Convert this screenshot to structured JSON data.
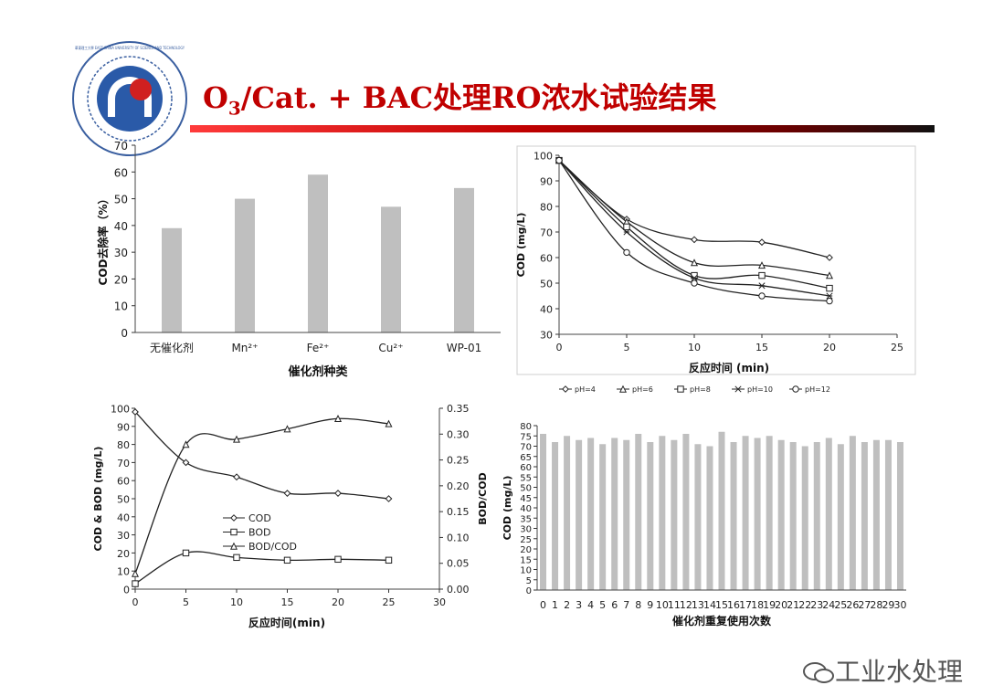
{
  "slide": {
    "title_main": "O",
    "title_sub": "3",
    "title_rest": "/Cat. + BAC处理RO浓水试验结果",
    "logo_icon": "university-seal-icon",
    "logo_text": "華東理工大學 EAST CHINA UNIVERSITY OF SCIENCE AND TECHNOLOGY",
    "watermark_icon": "wechat-icon",
    "watermark": "工业水处理",
    "accent": "#c00000"
  },
  "chart_data": [
    {
      "type": "bar",
      "categories": [
        "无催化剂",
        "Mn²⁺",
        "Fe²⁺",
        "Cu²⁺",
        "WP-01"
      ],
      "values": [
        39,
        50,
        59,
        47,
        54
      ],
      "xlabel": "催化剂种类",
      "ylabel": "COD去除率（%）",
      "ylim": [
        0,
        70
      ],
      "yticks": [
        "0",
        "10",
        "20",
        "30",
        "40",
        "50",
        "60",
        "70"
      ],
      "bar_color": "#bfbfbf"
    },
    {
      "type": "line",
      "x": [
        0,
        5,
        10,
        15,
        20
      ],
      "series": [
        {
          "name": "pH=4",
          "marker": "diamond",
          "values": [
            98,
            75,
            67,
            66,
            60
          ]
        },
        {
          "name": "pH=6",
          "marker": "triangle",
          "values": [
            98,
            74,
            58,
            57,
            53
          ]
        },
        {
          "name": "pH=8",
          "marker": "square",
          "values": [
            98,
            72,
            53,
            53,
            48
          ]
        },
        {
          "name": "pH=10",
          "marker": "star",
          "values": [
            98,
            70,
            52,
            49,
            45
          ]
        },
        {
          "name": "pH=12",
          "marker": "circle",
          "values": [
            98,
            62,
            50,
            45,
            43
          ]
        }
      ],
      "xlabel": "反应时间 (min)",
      "ylabel": "COD (mg/L)",
      "xlim": [
        0,
        25
      ],
      "ylim": [
        30,
        100
      ],
      "xticks": [
        "0",
        "5",
        "10",
        "15",
        "20",
        "25"
      ],
      "yticks": [
        "30",
        "40",
        "50",
        "60",
        "70",
        "80",
        "90",
        "100"
      ],
      "legend_placement": "bottom"
    },
    {
      "type": "line",
      "x": [
        0,
        5,
        10,
        15,
        20,
        25
      ],
      "series": [
        {
          "name": "COD",
          "marker": "diamond",
          "axis": "left",
          "values": [
            98,
            70,
            62,
            53,
            53,
            50
          ]
        },
        {
          "name": "BOD",
          "marker": "square",
          "axis": "left",
          "values": [
            3,
            20,
            17.5,
            16,
            16.5,
            16
          ]
        },
        {
          "name": "BOD/COD",
          "marker": "triangle",
          "axis": "right",
          "values": [
            0.03,
            0.28,
            0.29,
            0.31,
            0.33,
            0.32
          ]
        }
      ],
      "xlabel": "反应时间(min)",
      "ylabel": "COD & BOD (mg/L)",
      "y2label": "BOD/COD",
      "xlim": [
        0,
        30
      ],
      "ylim": [
        0,
        100
      ],
      "y2lim": [
        0,
        0.35
      ],
      "xticks": [
        "0",
        "5",
        "10",
        "15",
        "20",
        "25",
        "30"
      ],
      "yticks": [
        "0",
        "10",
        "20",
        "30",
        "40",
        "50",
        "60",
        "70",
        "80",
        "90",
        "100"
      ],
      "y2ticks": [
        "0.00",
        "0.05",
        "0.10",
        "0.15",
        "0.20",
        "0.25",
        "0.30",
        "0.35"
      ],
      "legend_placement": "center"
    },
    {
      "type": "bar",
      "categories": [
        "0",
        "1",
        "2",
        "3",
        "4",
        "5",
        "6",
        "7",
        "8",
        "9",
        "10",
        "11",
        "12",
        "13",
        "14",
        "15",
        "16",
        "17",
        "18",
        "19",
        "20",
        "21",
        "22",
        "23",
        "24",
        "25",
        "26",
        "27",
        "28",
        "29",
        "30"
      ],
      "values": [
        76,
        72,
        75,
        73,
        74,
        71,
        74,
        73,
        76,
        72,
        75,
        73,
        76,
        71,
        70,
        77,
        72,
        75,
        74,
        75,
        73,
        72,
        70,
        72,
        74,
        71,
        75,
        72,
        73,
        73,
        72
      ],
      "xlabel": "催化剂重复使用次数",
      "ylabel": "COD (mg/L)",
      "ylim": [
        0,
        80
      ],
      "yticks": [
        "0",
        "5",
        "10",
        "15",
        "20",
        "25",
        "30",
        "35",
        "40",
        "45",
        "50",
        "55",
        "60",
        "65",
        "70",
        "75",
        "80"
      ],
      "bar_color": "#bfbfbf"
    }
  ]
}
